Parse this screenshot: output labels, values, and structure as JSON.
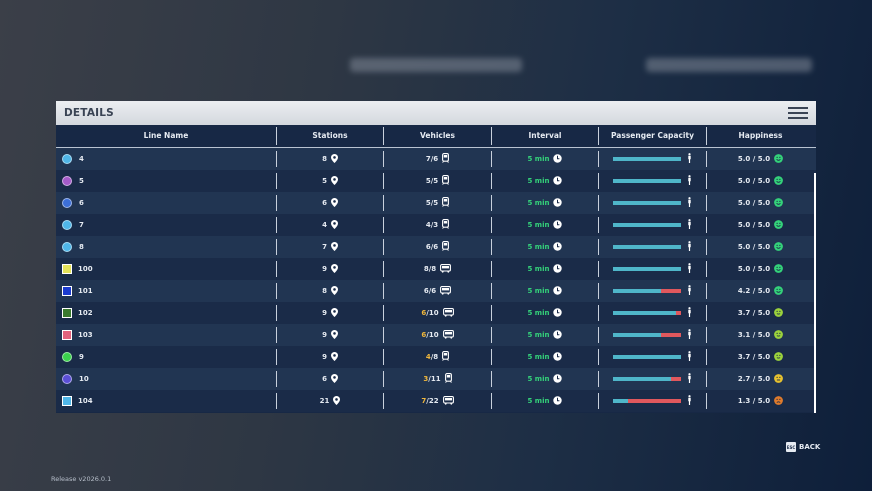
{
  "panel": {
    "title": "DETAILS"
  },
  "columns": {
    "line_name": "Line Name",
    "stations": "Stations",
    "vehicles": "Vehicles",
    "interval": "Interval",
    "capacity": "Passenger Capacity",
    "happiness": "Happiness"
  },
  "lines": [
    {
      "name": "4",
      "shape": "circle",
      "color": "#4fb6e8",
      "stations": "8",
      "veh_used": "7",
      "veh_total": "/6",
      "veh_warn": false,
      "vehicle_type": "train",
      "interval": "5 min",
      "capacity_used_fraction": 0,
      "happiness": "5.0 / 5.0",
      "mood": "happy",
      "mood_color": "#34d27a"
    },
    {
      "name": "5",
      "shape": "circle",
      "color": "#a55bc9",
      "stations": "5",
      "veh_used": "5",
      "veh_total": "/5",
      "veh_warn": false,
      "vehicle_type": "train",
      "interval": "5 min",
      "capacity_used_fraction": 0,
      "happiness": "5.0 / 5.0",
      "mood": "happy",
      "mood_color": "#34d27a"
    },
    {
      "name": "6",
      "shape": "circle",
      "color": "#3c6fd8",
      "stations": "6",
      "veh_used": "5",
      "veh_total": "/5",
      "veh_warn": false,
      "vehicle_type": "train",
      "interval": "5 min",
      "capacity_used_fraction": 0,
      "happiness": "5.0 / 5.0",
      "mood": "happy",
      "mood_color": "#34d27a"
    },
    {
      "name": "7",
      "shape": "circle",
      "color": "#4fb6e8",
      "stations": "4",
      "veh_used": "4",
      "veh_total": "/3",
      "veh_warn": false,
      "vehicle_type": "train",
      "interval": "5 min",
      "capacity_used_fraction": 0,
      "happiness": "5.0 / 5.0",
      "mood": "happy",
      "mood_color": "#34d27a"
    },
    {
      "name": "8",
      "shape": "circle",
      "color": "#4fb6e8",
      "stations": "7",
      "veh_used": "6",
      "veh_total": "/6",
      "veh_warn": false,
      "vehicle_type": "train",
      "interval": "5 min",
      "capacity_used_fraction": 0,
      "happiness": "5.0 / 5.0",
      "mood": "happy",
      "mood_color": "#34d27a"
    },
    {
      "name": "100",
      "shape": "square",
      "color": "#e4e25a",
      "stations": "9",
      "veh_used": "8",
      "veh_total": "/8",
      "veh_warn": false,
      "vehicle_type": "bus",
      "interval": "5 min",
      "capacity_used_fraction": 0,
      "happiness": "5.0 / 5.0",
      "mood": "happy",
      "mood_color": "#34d27a"
    },
    {
      "name": "101",
      "shape": "square",
      "color": "#1b3bd0",
      "stations": "8",
      "veh_used": "6",
      "veh_total": "/6",
      "veh_warn": false,
      "vehicle_type": "bus",
      "interval": "5 min",
      "capacity_used_fraction": 0.3,
      "happiness": "4.2 / 5.0",
      "mood": "happy",
      "mood_color": "#34d27a"
    },
    {
      "name": "102",
      "shape": "square",
      "color": "#3a7a2e",
      "stations": "9",
      "veh_used": "6",
      "veh_total": "/10",
      "veh_warn": true,
      "vehicle_type": "bus",
      "interval": "5 min",
      "capacity_used_fraction": 0.07,
      "happiness": "3.7 / 5.0",
      "mood": "ok",
      "mood_color": "#9bd23c"
    },
    {
      "name": "103",
      "shape": "square",
      "color": "#e2627d",
      "stations": "9",
      "veh_used": "6",
      "veh_total": "/10",
      "veh_warn": true,
      "vehicle_type": "bus",
      "interval": "5 min",
      "capacity_used_fraction": 0.3,
      "happiness": "3.1 / 5.0",
      "mood": "ok",
      "mood_color": "#9bd23c"
    },
    {
      "name": "9",
      "shape": "circle",
      "color": "#3bd24d",
      "stations": "9",
      "veh_used": "4",
      "veh_total": "/8",
      "veh_warn": true,
      "vehicle_type": "train",
      "interval": "5 min",
      "capacity_used_fraction": 0,
      "happiness": "3.7 / 5.0",
      "mood": "ok",
      "mood_color": "#9bd23c"
    },
    {
      "name": "10",
      "shape": "circle",
      "color": "#5b4fd6",
      "stations": "6",
      "veh_used": "3",
      "veh_total": "/11",
      "veh_warn": true,
      "vehicle_type": "train",
      "interval": "5 min",
      "capacity_used_fraction": 0.15,
      "happiness": "2.7 / 5.0",
      "mood": "neutral",
      "mood_color": "#e7c22f"
    },
    {
      "name": "104",
      "shape": "square",
      "color": "#4fb6e8",
      "stations": "21",
      "veh_used": "7",
      "veh_total": "/22",
      "veh_warn": true,
      "vehicle_type": "bus",
      "interval": "5 min",
      "capacity_used_fraction": 0.78,
      "happiness": "1.3 / 5.0",
      "mood": "sad",
      "mood_color": "#e07b2c"
    }
  ],
  "footer": {
    "back_key": "ESC",
    "back_label": "BACK",
    "release": "Release v2026.0.1"
  },
  "icons": {
    "station": "map-pin-icon",
    "train": "train-icon",
    "bus": "bus-icon",
    "interval": "clock-icon",
    "capacity": "person-icon",
    "menu": "hamburger-menu-icon"
  }
}
